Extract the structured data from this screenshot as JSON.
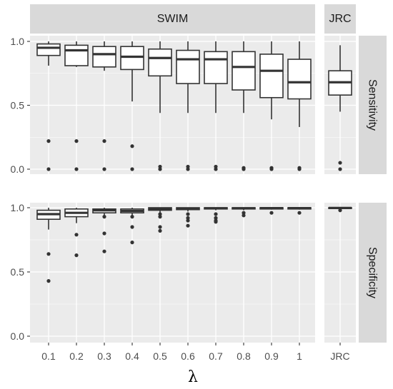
{
  "chart_data": {
    "type": "box",
    "xlabel": "λ",
    "ylabel": "",
    "ylim": [
      0,
      1
    ],
    "y_ticks": [
      "0.0",
      "0.5",
      "1.0"
    ],
    "y_tick_values": [
      0,
      0.5,
      1
    ],
    "column_facets": [
      "SWIM",
      "JRC"
    ],
    "row_facets": [
      "Sensitivity",
      "Specificity"
    ],
    "x_categories": {
      "SWIM": [
        "0.1",
        "0.2",
        "0.3",
        "0.4",
        "0.5",
        "0.6",
        "0.7",
        "0.8",
        "0.9",
        "1"
      ],
      "JRC": [
        "JRC"
      ]
    },
    "panels": [
      {
        "row": "Sensitivity",
        "col": "SWIM",
        "boxes": [
          {
            "x": "0.1",
            "lower": 0.81,
            "q1": 0.89,
            "median": 0.95,
            "q3": 0.98,
            "upper": 1.0,
            "outliers": [
              0.22,
              0.0
            ]
          },
          {
            "x": "0.2",
            "lower": 0.8,
            "q1": 0.81,
            "median": 0.93,
            "q3": 0.97,
            "upper": 1.0,
            "outliers": [
              0.22,
              0.0
            ]
          },
          {
            "x": "0.3",
            "lower": 0.77,
            "q1": 0.8,
            "median": 0.9,
            "q3": 0.96,
            "upper": 1.0,
            "outliers": [
              0.22,
              0.0
            ]
          },
          {
            "x": "0.4",
            "lower": 0.53,
            "q1": 0.78,
            "median": 0.88,
            "q3": 0.96,
            "upper": 1.0,
            "outliers": [
              0.18,
              0.0
            ]
          },
          {
            "x": "0.5",
            "lower": 0.44,
            "q1": 0.73,
            "median": 0.87,
            "q3": 0.94,
            "upper": 1.0,
            "outliers": [
              0.02,
              0.0
            ]
          },
          {
            "x": "0.6",
            "lower": 0.44,
            "q1": 0.67,
            "median": 0.86,
            "q3": 0.93,
            "upper": 1.0,
            "outliers": [
              0.02,
              0.0
            ]
          },
          {
            "x": "0.7",
            "lower": 0.44,
            "q1": 0.67,
            "median": 0.86,
            "q3": 0.92,
            "upper": 1.0,
            "outliers": [
              0.02,
              0.0
            ]
          },
          {
            "x": "0.8",
            "lower": 0.44,
            "q1": 0.62,
            "median": 0.8,
            "q3": 0.92,
            "upper": 1.0,
            "outliers": [
              0.01,
              0.0
            ]
          },
          {
            "x": "0.9",
            "lower": 0.39,
            "q1": 0.56,
            "median": 0.77,
            "q3": 0.9,
            "upper": 1.0,
            "outliers": [
              0.01,
              0.0
            ]
          },
          {
            "x": "1",
            "lower": 0.33,
            "q1": 0.55,
            "median": 0.68,
            "q3": 0.86,
            "upper": 1.0,
            "outliers": [
              0.01,
              0.0
            ]
          }
        ]
      },
      {
        "row": "Sensitivity",
        "col": "JRC",
        "boxes": [
          {
            "x": "JRC",
            "lower": 0.45,
            "q1": 0.58,
            "median": 0.68,
            "q3": 0.77,
            "upper": 0.97,
            "outliers": [
              0.05,
              0.0
            ]
          }
        ]
      },
      {
        "row": "Specificity",
        "col": "SWIM",
        "boxes": [
          {
            "x": "0.1",
            "lower": 0.83,
            "q1": 0.91,
            "median": 0.95,
            "q3": 0.98,
            "upper": 1.0,
            "outliers": [
              0.64,
              0.43
            ]
          },
          {
            "x": "0.2",
            "lower": 0.88,
            "q1": 0.93,
            "median": 0.96,
            "q3": 0.99,
            "upper": 1.0,
            "outliers": [
              0.79,
              0.63
            ]
          },
          {
            "x": "0.3",
            "lower": 0.93,
            "q1": 0.96,
            "median": 0.98,
            "q3": 0.99,
            "upper": 1.0,
            "outliers": [
              0.93,
              0.8,
              0.66
            ]
          },
          {
            "x": "0.4",
            "lower": 0.94,
            "q1": 0.96,
            "median": 0.975,
            "q3": 0.99,
            "upper": 1.0,
            "outliers": [
              0.93,
              0.85,
              0.73
            ]
          },
          {
            "x": "0.5",
            "lower": 0.96,
            "q1": 0.98,
            "median": 0.99,
            "q3": 1.0,
            "upper": 1.0,
            "outliers": [
              0.95,
              0.93,
              0.85,
              0.82
            ]
          },
          {
            "x": "0.6",
            "lower": 0.97,
            "q1": 0.985,
            "median": 0.99,
            "q3": 1.0,
            "upper": 1.0,
            "outliers": [
              0.95,
              0.92,
              0.9,
              0.86
            ]
          },
          {
            "x": "0.7",
            "lower": 0.98,
            "q1": 0.99,
            "median": 0.995,
            "q3": 1.0,
            "upper": 1.0,
            "outliers": [
              0.95,
              0.92,
              0.9,
              0.89
            ]
          },
          {
            "x": "0.8",
            "lower": 0.98,
            "q1": 0.99,
            "median": 0.995,
            "q3": 1.0,
            "upper": 1.0,
            "outliers": [
              0.96,
              0.94
            ]
          },
          {
            "x": "0.9",
            "lower": 0.985,
            "q1": 0.99,
            "median": 0.997,
            "q3": 1.0,
            "upper": 1.0,
            "outliers": [
              0.96
            ]
          },
          {
            "x": "1",
            "lower": 0.985,
            "q1": 0.99,
            "median": 0.997,
            "q3": 1.0,
            "upper": 1.0,
            "outliers": [
              0.96
            ]
          }
        ]
      },
      {
        "row": "Specificity",
        "col": "JRC",
        "boxes": [
          {
            "x": "JRC",
            "lower": 0.99,
            "q1": 0.995,
            "median": 0.998,
            "q3": 1.0,
            "upper": 1.0,
            "outliers": [
              0.98
            ]
          }
        ]
      }
    ],
    "colors": {
      "panel_background": "#ebebeb",
      "strip_background": "#d9d9d9",
      "grid": "#ffffff",
      "box_stroke": "#333333",
      "box_fill": "#ffffff"
    }
  }
}
